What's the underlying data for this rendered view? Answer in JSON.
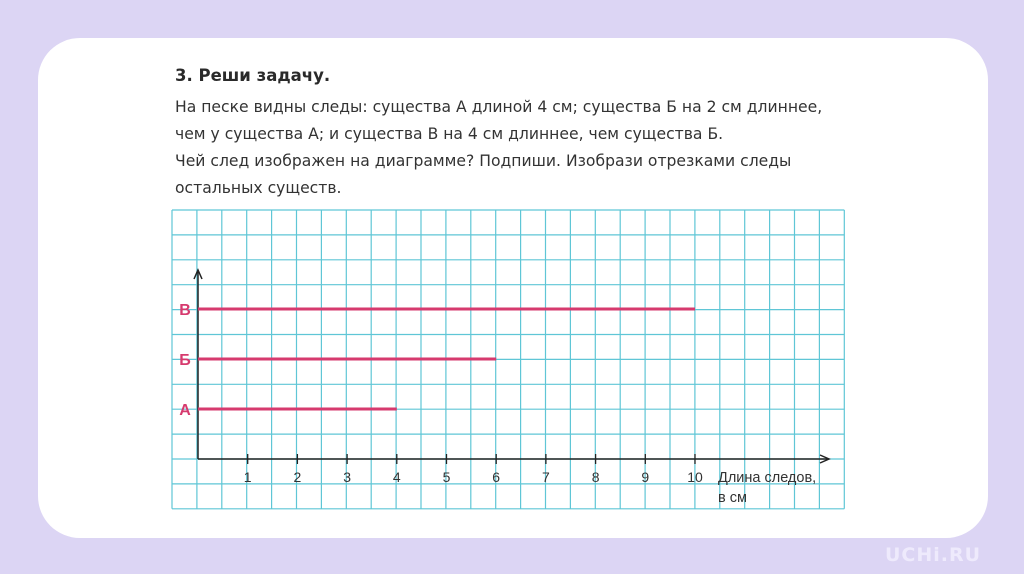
{
  "task": {
    "title": "3. Реши задачу.",
    "lines": [
      "На песке видны следы: существа А длиной 4 см; существа Б на 2 см длиннее,",
      "чем у существа А; и существа В на 4 см длиннее, чем существа Б.",
      "Чей след изображен на диаграмме? Подпиши. Изобрази отрезками следы",
      "остальных существ."
    ]
  },
  "chart_data": {
    "type": "bar",
    "orientation": "horizontal",
    "categories": [
      "А",
      "Б",
      "В"
    ],
    "values": [
      4,
      6,
      10
    ],
    "xlabel": "Длина следов, в см",
    "xlabel_lines": [
      "Длина следов,",
      "в см"
    ],
    "xticks": [
      "1",
      "2",
      "3",
      "4",
      "5",
      "6",
      "7",
      "8",
      "9",
      "10"
    ],
    "xlim": [
      0,
      12.5
    ],
    "grid": true,
    "colors": {
      "bar": "#d63a6e",
      "grid": "#5fc6d6",
      "axis": "#222222"
    }
  },
  "brand": "UCHi.RU"
}
